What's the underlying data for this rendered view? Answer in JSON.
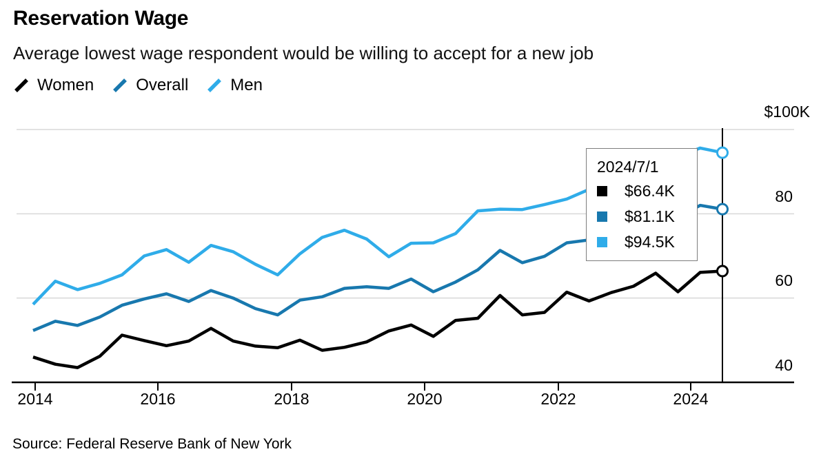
{
  "title": "Reservation Wage",
  "subtitle": "Average lowest wage respondent would be willing to accept for a new job",
  "source": "Source: Federal Reserve Bank of New York",
  "colors": {
    "women": "#000000",
    "overall": "#1878AE",
    "men": "#2FACE9",
    "gridline": "#D8D8D8",
    "axis": "#000000",
    "crosshair": "#000000",
    "tooltip_border": "#7D7D7D"
  },
  "legend": [
    {
      "label": "Women",
      "color": "#000000"
    },
    {
      "label": "Overall",
      "color": "#1878AE"
    },
    {
      "label": "Men",
      "color": "#2FACE9"
    }
  ],
  "tooltip": {
    "date": "2024/7/1",
    "rows": [
      {
        "series": "Women",
        "value": "$66.4K",
        "color": "#000000"
      },
      {
        "series": "Overall",
        "value": "$81.1K",
        "color": "#1878AE"
      },
      {
        "series": "Men",
        "value": "$94.5K",
        "color": "#2FACE9"
      }
    ]
  },
  "chart_data": {
    "type": "line",
    "title": "Reservation Wage",
    "subtitle": "Average lowest wage respondent would be willing to accept for a new job",
    "unit": "USD thousands",
    "ylim": [
      40,
      100
    ],
    "y_ticks": [
      100,
      80,
      60,
      40
    ],
    "y_tick_labels": [
      "$100K",
      "80",
      "60",
      "40"
    ],
    "x_tick_labels": [
      "2014",
      "2016",
      "2018",
      "2020",
      "2022",
      "2024"
    ],
    "grid": "horizontal",
    "legend_position": "top-left",
    "highlight_date": "2024/7/1",
    "x": [
      "2014/3",
      "2014/7",
      "2014/11",
      "2015/3",
      "2015/7",
      "2015/11",
      "2016/3",
      "2016/7",
      "2016/11",
      "2017/3",
      "2017/7",
      "2017/11",
      "2018/3",
      "2018/7",
      "2018/11",
      "2019/3",
      "2019/7",
      "2019/11",
      "2020/3",
      "2020/7",
      "2020/11",
      "2021/3",
      "2021/7",
      "2021/11",
      "2022/3",
      "2022/7",
      "2022/11",
      "2023/3",
      "2023/7",
      "2023/11",
      "2024/3",
      "2024/7"
    ],
    "series": [
      {
        "name": "Women",
        "color": "#000000",
        "values": [
          46.0,
          44.3,
          43.5,
          46.2,
          51.2,
          49.9,
          48.7,
          49.8,
          52.8,
          49.8,
          48.6,
          48.2,
          50.0,
          47.6,
          48.3,
          49.6,
          52.2,
          53.6,
          50.9,
          54.7,
          55.2,
          60.6,
          56.0,
          56.6,
          61.4,
          59.3,
          61.3,
          62.8,
          65.9,
          61.5,
          66.1,
          66.4
        ]
      },
      {
        "name": "Overall",
        "color": "#1878AE",
        "values": [
          52.3,
          54.5,
          53.5,
          55.5,
          58.3,
          59.8,
          61.0,
          59.2,
          61.8,
          60.0,
          57.5,
          56.0,
          59.5,
          60.3,
          62.3,
          62.7,
          62.3,
          64.5,
          61.5,
          63.8,
          66.7,
          71.3,
          68.4,
          69.9,
          73.1,
          73.8,
          74.8,
          76.2,
          77.6,
          79.2,
          82.0,
          81.1
        ]
      },
      {
        "name": "Men",
        "color": "#2FACE9",
        "values": [
          58.5,
          64.0,
          62.0,
          63.5,
          65.5,
          70.0,
          71.5,
          68.5,
          72.5,
          71.0,
          68.0,
          65.5,
          70.5,
          74.4,
          76.1,
          74.0,
          69.8,
          73.0,
          73.1,
          75.3,
          80.7,
          81.1,
          81.0,
          82.2,
          83.5,
          85.8,
          87.5,
          89.5,
          91.5,
          93.5,
          95.6,
          94.5
        ]
      }
    ],
    "end_markers": [
      {
        "series": "Women",
        "value": 66.4
      },
      {
        "series": "Overall",
        "value": 81.1
      },
      {
        "series": "Men",
        "value": 94.5
      }
    ]
  }
}
